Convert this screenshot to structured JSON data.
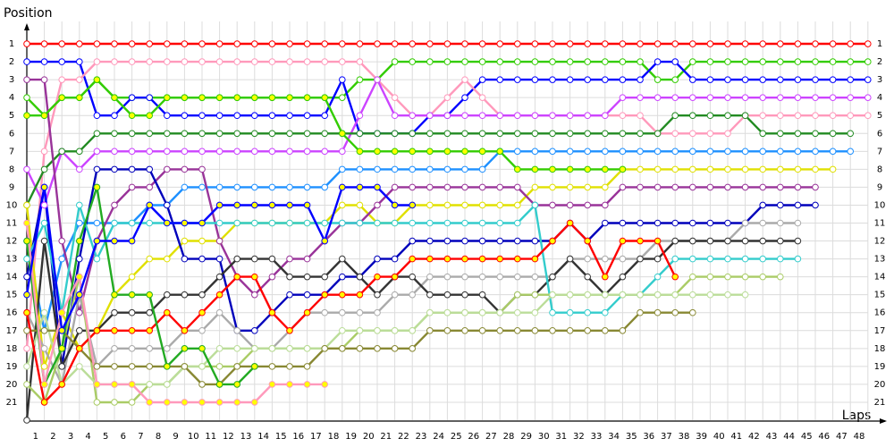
{
  "chart_data": {
    "type": "lap_chart",
    "ylabel": "Position",
    "xlabel": "Laps",
    "x": [
      0,
      1,
      2,
      3,
      4,
      5,
      6,
      7,
      8,
      9,
      10,
      11,
      12,
      13,
      14,
      15,
      16,
      17,
      18,
      19,
      20,
      21,
      22,
      23,
      24,
      25,
      26,
      27,
      28,
      29,
      30,
      31,
      32,
      33,
      34,
      35,
      36,
      37,
      38,
      39,
      40,
      41,
      42,
      43,
      44,
      45,
      46,
      47,
      48
    ],
    "xlim": [
      0,
      48
    ],
    "xticks": [
      1,
      2,
      3,
      4,
      5,
      6,
      7,
      8,
      9,
      10,
      11,
      12,
      13,
      14,
      15,
      16,
      17,
      18,
      19,
      20,
      21,
      22,
      23,
      24,
      25,
      26,
      27,
      28,
      29,
      30,
      31,
      32,
      33,
      34,
      35,
      36,
      37,
      38,
      39,
      40,
      41,
      42,
      43,
      44,
      45,
      46,
      47,
      48
    ],
    "ylim": [
      22,
      0
    ],
    "yticks": [
      1,
      2,
      3,
      4,
      5,
      6,
      7,
      8,
      9,
      10,
      11,
      12,
      13,
      14,
      15,
      16,
      17,
      18,
      19,
      20,
      21
    ],
    "grid": true,
    "series": [
      {
        "color": "#ff0000",
        "marker_fill": "#ffffff",
        "values": [
          1,
          1,
          1,
          1,
          1,
          1,
          1,
          1,
          1,
          1,
          1,
          1,
          1,
          1,
          1,
          1,
          1,
          1,
          1,
          1,
          1,
          1,
          1,
          1,
          1,
          1,
          1,
          1,
          1,
          1,
          1,
          1,
          1,
          1,
          1,
          1,
          1,
          1,
          1,
          1,
          1,
          1,
          1,
          1,
          1,
          1,
          1,
          1,
          1
        ]
      },
      {
        "color": "#33cc00",
        "marker_fill": "#ffffff",
        "values": [
          4,
          5,
          4,
          4,
          3,
          4,
          4,
          4,
          4,
          4,
          4,
          4,
          4,
          4,
          4,
          4,
          4,
          4,
          4,
          3,
          3,
          2,
          2,
          2,
          2,
          2,
          2,
          2,
          2,
          2,
          2,
          2,
          2,
          2,
          2,
          2,
          3,
          3,
          2,
          2,
          2,
          2,
          2,
          2,
          2,
          2,
          2,
          2,
          2
        ]
      },
      {
        "color": "#0000ff",
        "marker_fill": "#ffffff",
        "values": [
          2,
          2,
          2,
          2,
          5,
          5,
          4,
          4,
          5,
          5,
          5,
          5,
          5,
          5,
          5,
          5,
          5,
          5,
          3,
          6,
          6,
          6,
          6,
          5,
          5,
          4,
          3,
          3,
          3,
          3,
          3,
          3,
          3,
          3,
          3,
          3,
          2,
          2,
          3,
          3,
          3,
          3,
          3,
          3,
          3,
          3,
          3,
          3,
          3
        ]
      },
      {
        "color": "#ff99bb",
        "marker_fill": "#ffffff",
        "values": [
          18,
          7,
          3,
          3,
          2,
          2,
          2,
          2,
          2,
          2,
          2,
          2,
          2,
          2,
          2,
          2,
          2,
          2,
          2,
          2,
          3,
          4,
          5,
          5,
          4,
          3,
          4,
          5,
          5,
          5,
          5,
          5,
          5,
          5,
          5,
          5,
          6,
          6,
          6,
          6,
          6,
          5,
          5,
          5,
          5,
          5,
          5,
          5,
          5
        ]
      },
      {
        "color": "#cc44ff",
        "marker_fill": "#ffffff",
        "values": [
          8,
          10,
          7,
          8,
          7,
          7,
          7,
          7,
          7,
          7,
          7,
          7,
          7,
          7,
          7,
          7,
          7,
          7,
          7,
          5,
          3,
          5,
          5,
          5,
          5,
          5,
          5,
          5,
          5,
          5,
          5,
          5,
          5,
          5,
          4,
          4,
          4,
          4,
          4,
          4,
          4,
          4,
          4,
          4,
          4,
          4,
          4,
          4,
          4
        ]
      },
      {
        "color": "#228b22",
        "marker_fill": "#ffffff",
        "values": [
          10,
          8,
          7,
          7,
          6,
          6,
          6,
          6,
          6,
          6,
          6,
          6,
          6,
          6,
          6,
          6,
          6,
          6,
          6,
          6,
          6,
          6,
          6,
          6,
          6,
          6,
          6,
          6,
          6,
          6,
          6,
          6,
          6,
          6,
          6,
          6,
          6,
          5,
          5,
          5,
          5,
          5,
          6,
          6,
          6,
          6,
          6,
          6,
          null
        ]
      },
      {
        "color": "#1e90ff",
        "marker_fill": "#ffffff",
        "values": [
          12,
          17,
          13,
          11,
          11,
          11,
          11,
          10,
          10,
          9,
          9,
          9,
          9,
          9,
          9,
          9,
          9,
          9,
          8,
          8,
          8,
          8,
          8,
          8,
          8,
          8,
          8,
          7,
          7,
          7,
          7,
          7,
          7,
          7,
          7,
          7,
          7,
          7,
          7,
          7,
          7,
          7,
          7,
          7,
          7,
          7,
          7,
          7,
          null
        ]
      },
      {
        "color": "#e0e000",
        "marker_fill": "#ffffff",
        "values": [
          10,
          19,
          16,
          18,
          17,
          15,
          14,
          13,
          13,
          12,
          12,
          12,
          11,
          11,
          11,
          11,
          11,
          11,
          10,
          10,
          11,
          11,
          10,
          10,
          10,
          10,
          10,
          10,
          10,
          9,
          9,
          9,
          9,
          9,
          8,
          8,
          8,
          8,
          8,
          8,
          8,
          8,
          8,
          8,
          8,
          8,
          8,
          null,
          null
        ]
      },
      {
        "color": "#993399",
        "marker_fill": "#ffffff",
        "values": [
          3,
          3,
          12,
          16,
          12,
          10,
          9,
          9,
          8,
          8,
          8,
          12,
          14,
          15,
          14,
          13,
          13,
          12,
          11,
          11,
          10,
          9,
          9,
          9,
          9,
          9,
          9,
          9,
          9,
          10,
          10,
          10,
          10,
          10,
          9,
          9,
          9,
          9,
          9,
          9,
          9,
          9,
          9,
          9,
          9,
          9,
          null,
          null,
          null
        ]
      },
      {
        "color": "#0000bb",
        "marker_fill": "#ffffff",
        "values": [
          14,
          9,
          19,
          13,
          8,
          8,
          8,
          8,
          10,
          13,
          13,
          13,
          17,
          17,
          16,
          15,
          15,
          15,
          14,
          14,
          13,
          13,
          12,
          12,
          12,
          12,
          12,
          12,
          12,
          12,
          12,
          11,
          12,
          11,
          11,
          11,
          11,
          11,
          11,
          11,
          11,
          11,
          10,
          10,
          10,
          10,
          null,
          null,
          null
        ]
      },
      {
        "color": "#aaaaaa",
        "marker_fill": "#ffffff",
        "values": [
          16,
          18,
          20,
          15,
          19,
          18,
          18,
          18,
          18,
          17,
          17,
          16,
          17,
          18,
          18,
          17,
          16,
          16,
          16,
          16,
          16,
          15,
          15,
          14,
          14,
          14,
          14,
          14,
          14,
          14,
          14,
          13,
          13,
          13,
          13,
          13,
          12,
          12,
          12,
          12,
          12,
          11,
          11,
          11,
          11,
          null,
          null,
          null,
          null
        ]
      },
      {
        "color": "#333333",
        "marker_fill": "#ffffff",
        "values": [
          22,
          12,
          19,
          17,
          17,
          16,
          16,
          16,
          15,
          15,
          15,
          14,
          13,
          13,
          13,
          14,
          14,
          14,
          13,
          14,
          15,
          14,
          14,
          15,
          15,
          15,
          15,
          16,
          15,
          15,
          14,
          13,
          14,
          15,
          14,
          13,
          13,
          12,
          12,
          12,
          12,
          12,
          12,
          12,
          12,
          null,
          null,
          null,
          null
        ]
      },
      {
        "color": "#33cccc",
        "marker_fill": "#ffffff",
        "values": [
          13,
          11,
          16,
          10,
          13,
          11,
          11,
          11,
          11,
          11,
          11,
          11,
          11,
          11,
          11,
          11,
          11,
          11,
          11,
          11,
          11,
          11,
          11,
          11,
          11,
          11,
          11,
          11,
          11,
          10,
          16,
          16,
          16,
          16,
          15,
          15,
          14,
          13,
          13,
          13,
          13,
          13,
          13,
          13,
          13,
          null,
          null,
          null,
          null
        ]
      },
      {
        "color": "#aacc66",
        "marker_fill": "#ffffff",
        "values": [
          20,
          21,
          18,
          14,
          21,
          21,
          21,
          20,
          20,
          19,
          19,
          19,
          19,
          18,
          18,
          18,
          18,
          18,
          18,
          17,
          17,
          17,
          17,
          16,
          16,
          16,
          16,
          16,
          15,
          15,
          15,
          15,
          15,
          15,
          15,
          15,
          15,
          15,
          14,
          14,
          14,
          14,
          14,
          14,
          null,
          null,
          null,
          null,
          null
        ]
      },
      {
        "color": "#bbdd99",
        "marker_fill": "#ffffff",
        "values": [
          19,
          16,
          20,
          19,
          20,
          20,
          20,
          20,
          20,
          19,
          19,
          18,
          18,
          18,
          18,
          18,
          18,
          18,
          17,
          17,
          17,
          17,
          17,
          16,
          16,
          16,
          16,
          16,
          16,
          16,
          15,
          15,
          15,
          15,
          15,
          15,
          15,
          15,
          15,
          15,
          15,
          15,
          null,
          null,
          null,
          null,
          null,
          null,
          null
        ]
      },
      {
        "color": "#888833",
        "marker_fill": "#ffffff",
        "values": [
          17,
          17,
          17,
          18,
          19,
          19,
          19,
          19,
          19,
          19,
          20,
          20,
          19,
          19,
          19,
          19,
          19,
          18,
          18,
          18,
          18,
          18,
          18,
          17,
          17,
          17,
          17,
          17,
          17,
          17,
          17,
          17,
          17,
          17,
          17,
          16,
          16,
          16,
          16,
          null,
          null,
          null,
          null,
          null,
          null,
          null,
          null,
          null,
          null
        ]
      },
      {
        "color": "#ff0000",
        "marker_fill": "#ffff00",
        "values": [
          16,
          21,
          20,
          18,
          17,
          17,
          17,
          17,
          16,
          17,
          16,
          15,
          14,
          14,
          16,
          17,
          16,
          15,
          15,
          15,
          14,
          14,
          13,
          13,
          13,
          13,
          13,
          13,
          13,
          13,
          12,
          11,
          12,
          14,
          12,
          12,
          12,
          14,
          null,
          null,
          null,
          null,
          null,
          null,
          null,
          null,
          null,
          null,
          null
        ]
      },
      {
        "color": "#33cc00",
        "marker_fill": "#ffff00",
        "values": [
          5,
          5,
          4,
          4,
          3,
          4,
          5,
          5,
          4,
          4,
          4,
          4,
          4,
          4,
          4,
          4,
          4,
          4,
          6,
          7,
          7,
          7,
          7,
          7,
          7,
          7,
          7,
          7,
          8,
          8,
          8,
          8,
          8,
          8,
          8,
          null,
          null,
          null,
          null,
          null,
          null,
          null,
          null,
          null,
          null,
          null,
          null,
          null,
          null
        ]
      },
      {
        "color": "#22aa22",
        "marker_fill": "#ffff00",
        "values": [
          12,
          20,
          18,
          12,
          9,
          15,
          15,
          15,
          19,
          18,
          18,
          20,
          20,
          19,
          null,
          null,
          null,
          null,
          null,
          null,
          null,
          null,
          null,
          null,
          null,
          null,
          null,
          null,
          null,
          null,
          null,
          null,
          null,
          null,
          null,
          null,
          null,
          null,
          null,
          null,
          null,
          null,
          null,
          null,
          null,
          null,
          null,
          null,
          null
        ]
      },
      {
        "color": "#ff99bb",
        "marker_fill": "#ffff00",
        "values": [
          11,
          20,
          16,
          14,
          20,
          20,
          20,
          21,
          21,
          21,
          21,
          21,
          21,
          21,
          20,
          20,
          20,
          20,
          null,
          null,
          null,
          null,
          null,
          null,
          null,
          null,
          null,
          null,
          null,
          null,
          null,
          null,
          null,
          null,
          null,
          null,
          null,
          null,
          null,
          null,
          null,
          null,
          null,
          null,
          null,
          null,
          null,
          null,
          null
        ]
      },
      {
        "color": "#0000ff",
        "marker_fill": "#ffff00",
        "values": [
          15,
          9,
          17,
          15,
          12,
          12,
          12,
          10,
          11,
          11,
          11,
          10,
          10,
          10,
          10,
          10,
          10,
          12,
          9,
          9,
          9,
          10,
          10,
          null,
          null,
          null,
          null,
          null,
          null,
          null,
          null,
          null,
          null,
          null,
          null,
          null,
          null,
          null,
          null,
          null,
          null,
          null,
          null,
          null,
          null,
          null,
          null,
          null,
          null
        ]
      }
    ]
  }
}
